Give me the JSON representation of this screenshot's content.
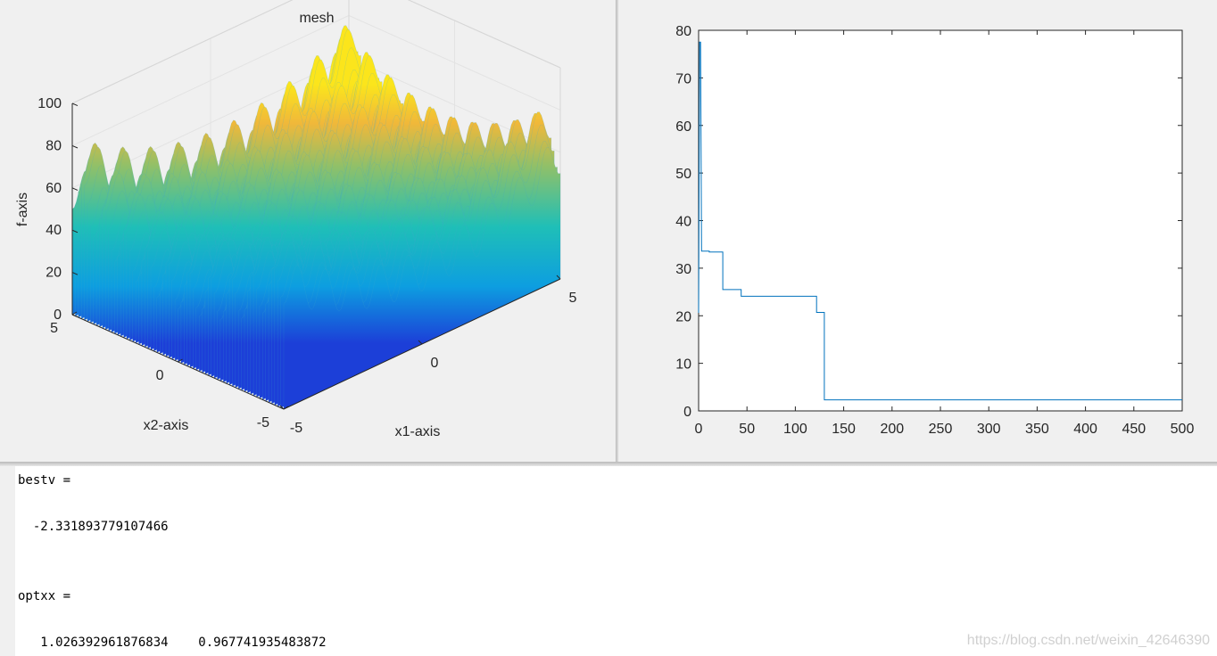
{
  "left_figure": {
    "title": "mesh",
    "zlabel": "f-axis",
    "xlabel": "x1-axis",
    "ylabel": "x2-axis",
    "z_ticks": [
      "0",
      "20",
      "40",
      "60",
      "80",
      "100"
    ],
    "x1_ticks": [
      "-5",
      "0",
      "5"
    ],
    "x2_ticks": [
      "-5",
      "0",
      "5"
    ]
  },
  "chart_data": [
    {
      "type": "surface",
      "title": "mesh",
      "xlabel": "x1-axis",
      "ylabel": "x2-axis",
      "zlabel": "f-axis",
      "xlim": [
        -5,
        5
      ],
      "ylim": [
        -5,
        5
      ],
      "zlim": [
        0,
        100
      ],
      "colormap": "parula",
      "grid": true
    },
    {
      "type": "line",
      "xlabel": "",
      "ylabel": "",
      "xlim": [
        0,
        500
      ],
      "ylim": [
        0,
        80
      ],
      "x_ticks": [
        "0",
        "50",
        "100",
        "150",
        "200",
        "250",
        "300",
        "350",
        "400",
        "450",
        "500"
      ],
      "y_ticks": [
        "0",
        "10",
        "20",
        "30",
        "40",
        "50",
        "60",
        "70",
        "80"
      ],
      "grid": false,
      "series": [
        {
          "color": "#0072bd",
          "points": [
            [
              0,
              20.6
            ],
            [
              1,
              77.5
            ],
            [
              2,
              77.5
            ],
            [
              3,
              33.6
            ],
            [
              11,
              33.6
            ],
            [
              11,
              33.4
            ],
            [
              25,
              33.4
            ],
            [
              25,
              25.5
            ],
            [
              44,
              25.5
            ],
            [
              44,
              24.1
            ],
            [
              122,
              24.1
            ],
            [
              122,
              20.7
            ],
            [
              130,
              20.7
            ],
            [
              130,
              2.33
            ],
            [
              500,
              2.33
            ]
          ]
        }
      ]
    }
  ],
  "console": {
    "lines": [
      "bestv =",
      "  -2.331893779107466",
      "optxx =",
      "   1.026392961876834    0.967741935483872"
    ]
  },
  "watermark": "https://blog.csdn.net/weixin_42646390"
}
